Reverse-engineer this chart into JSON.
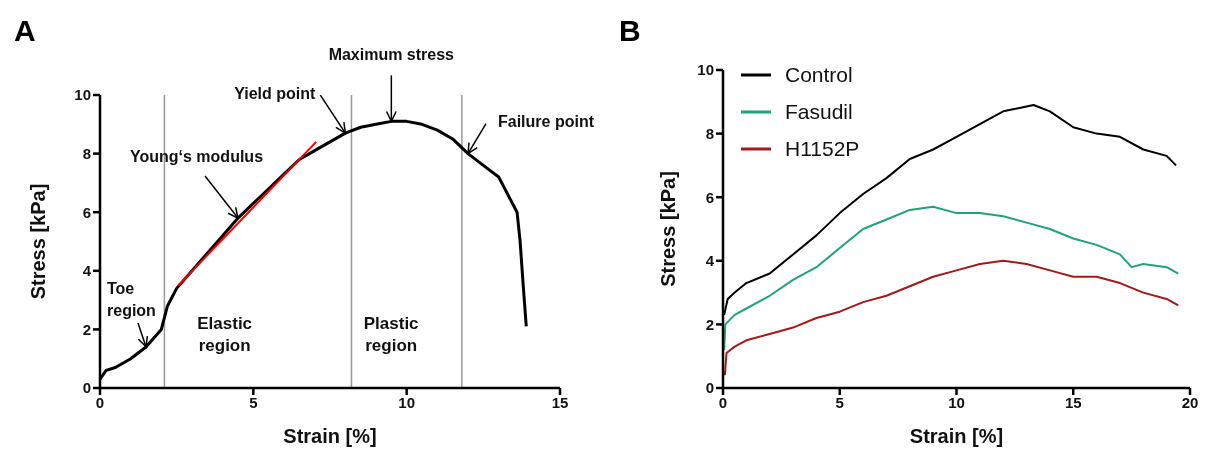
{
  "chart_data": [
    {
      "type": "line",
      "title": "A",
      "xlabel": "Strain [%]",
      "ylabel": "Stress [kPa]",
      "xlim": [
        0,
        15
      ],
      "xticks": [
        0,
        5,
        10,
        15
      ],
      "ylim": [
        0,
        10
      ],
      "yticks": [
        0,
        2,
        4,
        6,
        8,
        10
      ],
      "grid": false,
      "legend": false,
      "marker": "none",
      "line_style": "solid",
      "series": [
        {
          "color": "#000000",
          "x": [
            0,
            0.2,
            0.5,
            1,
            1.5,
            2,
            2.2,
            2.5,
            3,
            3.5,
            4,
            4.5,
            5,
            5.5,
            6,
            6.5,
            7,
            7.5,
            8,
            8.5,
            9,
            9.5,
            10,
            10.5,
            11,
            11.5,
            12,
            12.5,
            13,
            13.3,
            13.6,
            13.7,
            13.8,
            13.9
          ],
          "values": [
            0.3,
            0.6,
            0.7,
            1.0,
            1.4,
            2.0,
            2.8,
            3.4,
            4.0,
            4.6,
            5.2,
            5.8,
            6.3,
            6.8,
            7.3,
            7.8,
            8.1,
            8.4,
            8.7,
            8.9,
            9.0,
            9.1,
            9.1,
            9.0,
            8.8,
            8.5,
            8.0,
            7.6,
            7.2,
            6.6,
            6.0,
            5.0,
            3.5,
            2.1
          ]
        },
        {
          "type": "line",
          "color": "#ff0000",
          "x": [
            2.55,
            7.05
          ],
          "values": [
            3.5,
            8.4
          ]
        }
      ],
      "ref_lines": [
        {
          "axis": "x",
          "value": 2.1,
          "color": "#999999"
        },
        {
          "axis": "x",
          "value": 8.2,
          "color": "#999999"
        },
        {
          "axis": "x",
          "value": 11.8,
          "color": "#999999"
        }
      ],
      "annotations": [
        {
          "text": "Toe region",
          "x": 1.5,
          "y": 1.4
        },
        {
          "text": "Young‘s modulus",
          "x": 4.5,
          "y": 5.8
        },
        {
          "text": "Yield point",
          "x": 8,
          "y": 8.7
        },
        {
          "text": "Maximum stress",
          "x": 9.5,
          "y": 9.1
        },
        {
          "text": "Failure point",
          "x": 12,
          "y": 8.0
        },
        "Elastic region",
        "Plastic region"
      ]
    },
    {
      "type": "line",
      "title": "B",
      "xlabel": "Strain [%]",
      "ylabel": "Stress [kPa]",
      "xlim": [
        0,
        20
      ],
      "xticks": [
        0,
        5,
        10,
        15,
        20
      ],
      "ylim": [
        0,
        10
      ],
      "yticks": [
        0,
        2,
        4,
        6,
        8,
        10
      ],
      "grid": false,
      "legend": "top left",
      "marker": "none",
      "line_style": "solid",
      "series": [
        {
          "name": "Control",
          "color": "#000000",
          "x": [
            0.05,
            0.2,
            0.5,
            1,
            2,
            3,
            4,
            5,
            6,
            7,
            8,
            9,
            10,
            11,
            12,
            13,
            13.3,
            14,
            15,
            16,
            17,
            18,
            19,
            19.4
          ],
          "values": [
            2.3,
            2.8,
            3.0,
            3.3,
            3.6,
            4.2,
            4.8,
            5.5,
            6.1,
            6.6,
            7.2,
            7.5,
            7.9,
            8.3,
            8.7,
            8.85,
            8.9,
            8.7,
            8.2,
            8.0,
            7.9,
            7.5,
            7.3,
            7.0
          ]
        },
        {
          "name": "Fasudil",
          "color": "#1fa37a",
          "x": [
            0.05,
            0.1,
            0.5,
            1,
            2,
            3,
            4,
            5,
            6,
            7,
            8,
            9,
            10,
            11,
            12,
            13,
            14,
            15,
            16,
            17,
            17.5,
            18,
            19,
            19.5
          ],
          "values": [
            1.2,
            2.0,
            2.3,
            2.5,
            2.9,
            3.4,
            3.8,
            4.4,
            5.0,
            5.3,
            5.6,
            5.7,
            5.5,
            5.5,
            5.4,
            5.2,
            5.0,
            4.7,
            4.5,
            4.2,
            3.8,
            3.9,
            3.8,
            3.6
          ]
        },
        {
          "name": "H1152P",
          "color": "#a31a1a",
          "x": [
            0.08,
            0.15,
            0.5,
            1,
            2,
            3,
            4,
            5,
            6,
            7,
            8,
            9,
            10,
            11,
            12,
            13,
            14,
            15,
            16,
            17,
            18,
            19,
            19.5
          ],
          "values": [
            0.4,
            1.1,
            1.3,
            1.5,
            1.7,
            1.9,
            2.2,
            2.4,
            2.7,
            2.9,
            3.2,
            3.5,
            3.7,
            3.9,
            4.0,
            3.9,
            3.7,
            3.5,
            3.5,
            3.3,
            3.0,
            2.8,
            2.6
          ]
        }
      ]
    }
  ]
}
